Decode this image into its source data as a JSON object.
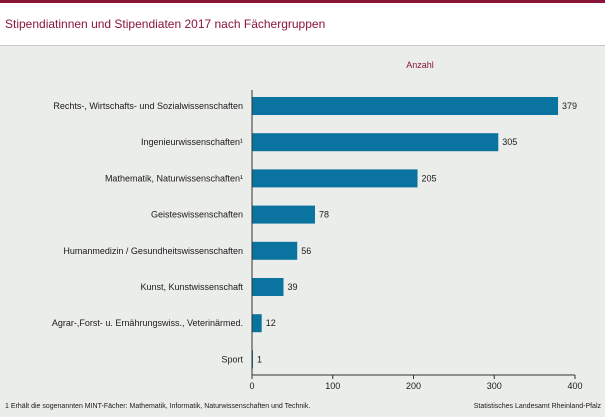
{
  "header": {
    "title": "Stipendiatinnen und Stipendiaten 2017 nach Fächergruppen"
  },
  "footer": {
    "footnote": "1 Erhält die sogenannten MINT-Fächer: Mathematik, Informatik, Naturwissenschaften und Technik.",
    "source": "Statistisches Landesamt Rheinland-Pfalz"
  },
  "colors": {
    "bar": "#0a73a0",
    "title": "#8a1538"
  },
  "chart_data": {
    "type": "bar",
    "orientation": "horizontal",
    "title": "Stipendiatinnen und Stipendiaten 2017 nach Fächergruppen",
    "series_label": "Anzahl",
    "categories": [
      "Rechts-, Wirtschafts- und Sozialwissenschaften",
      "Ingenieurwissenschaften¹",
      "Mathematik, Naturwissenschaften¹",
      "Geisteswissenschaften",
      "Humanmedizin / Gesundheitswissenschaften",
      "Kunst, Kunstwissenschaft",
      "Agrar-,Forst- u. Ernährungswiss., Veterinärmed.",
      "Sport"
    ],
    "values": [
      379,
      305,
      205,
      78,
      56,
      39,
      12,
      1
    ],
    "value_labels": [
      "379",
      "305",
      "205",
      "78",
      "56",
      "39",
      "12",
      "1"
    ],
    "xlim": [
      0,
      400
    ],
    "xticks": [
      0,
      100,
      200,
      300,
      400
    ],
    "xtick_labels": [
      "0",
      "100",
      "200",
      "300",
      "400"
    ],
    "grid": false,
    "legend": "none"
  }
}
